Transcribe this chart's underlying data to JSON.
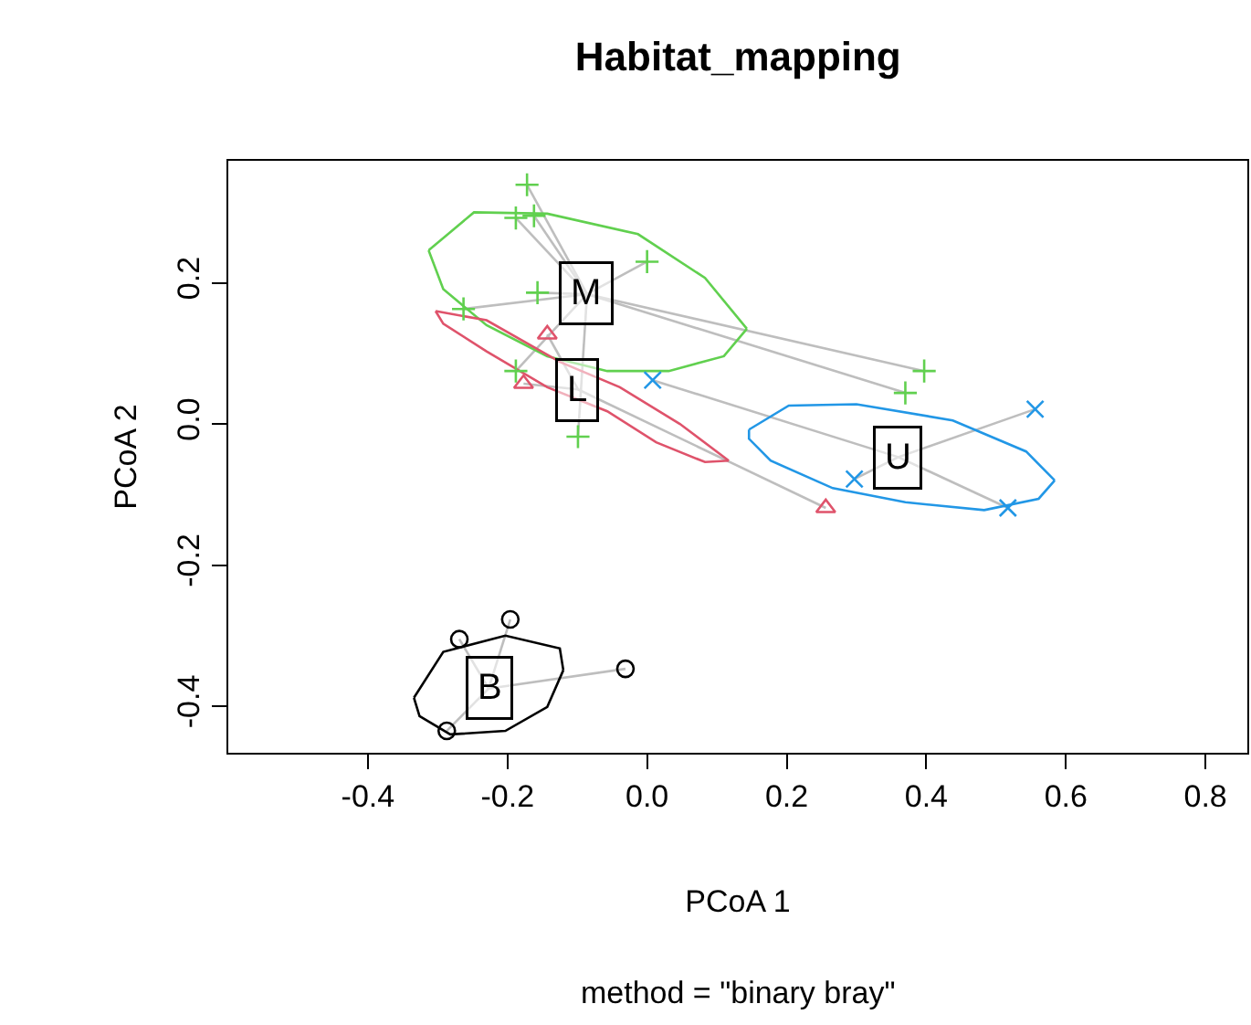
{
  "chart_data": {
    "type": "scatter",
    "title": "Habitat_mapping",
    "subtitle": "method = \"binary bray\"",
    "xlabel": "PCoA 1",
    "ylabel": "PCoA 2",
    "xlim": [
      -0.6,
      0.86
    ],
    "ylim": [
      -0.466,
      0.373
    ],
    "xticks": [
      -0.4,
      -0.2,
      {
        "value": 0,
        "label": "0.0"
      },
      0.2,
      0.4,
      0.6,
      0.8
    ],
    "yticks": [
      -0.4,
      -0.2,
      {
        "value": 0,
        "label": "0.0"
      },
      0.2
    ],
    "series": [
      {
        "type": "line",
        "color": "#bebebe",
        "x": [
          -0.172,
          -0.086
        ],
        "values": [
          0.339,
          0.184
        ]
      },
      {
        "type": "line",
        "color": "#bebebe",
        "x": [
          -0.188,
          -0.086
        ],
        "values": [
          0.292,
          0.184
        ]
      },
      {
        "type": "line",
        "color": "#bebebe",
        "x": [
          -0.162,
          -0.086
        ],
        "values": [
          0.295,
          0.184
        ]
      },
      {
        "type": "line",
        "color": "#bebebe",
        "x": [
          -0.086,
          0.0
        ],
        "values": [
          0.184,
          0.23
        ]
      },
      {
        "type": "line",
        "color": "#bebebe",
        "x": [
          -0.157,
          -0.086
        ],
        "values": [
          0.186,
          0.184
        ]
      },
      {
        "type": "line",
        "color": "#bebebe",
        "x": [
          -0.263,
          -0.086
        ],
        "values": [
          0.163,
          0.184
        ]
      },
      {
        "type": "line",
        "color": "#bebebe",
        "x": [
          -0.188,
          -0.086
        ],
        "values": [
          0.075,
          0.184
        ]
      },
      {
        "type": "line",
        "color": "#bebebe",
        "x": [
          -0.099,
          -0.086
        ],
        "values": [
          -0.018,
          0.184
        ]
      },
      {
        "type": "line",
        "color": "#bebebe",
        "x": [
          -0.086,
          0.397
        ],
        "values": [
          0.184,
          0.075
        ]
      },
      {
        "type": "line",
        "color": "#bebebe",
        "x": [
          -0.086,
          0.37
        ],
        "values": [
          0.184,
          0.044
        ]
      },
      {
        "type": "line",
        "color": "#bebebe",
        "x": [
          -0.143,
          -0.099
        ],
        "values": [
          0.127,
          0.049
        ]
      },
      {
        "type": "line",
        "color": "#bebebe",
        "x": [
          -0.177,
          -0.099
        ],
        "values": [
          0.057,
          0.049
        ]
      },
      {
        "type": "line",
        "color": "#bebebe",
        "x": [
          -0.099,
          0.256
        ],
        "values": [
          0.049,
          -0.119
        ]
      },
      {
        "type": "line",
        "color": "#bebebe",
        "x": [
          0.008,
          0.36
        ],
        "values": [
          0.062,
          -0.047
        ]
      },
      {
        "type": "line",
        "color": "#bebebe",
        "x": [
          0.297,
          0.36
        ],
        "values": [
          -0.078,
          -0.047
        ]
      },
      {
        "type": "line",
        "color": "#bebebe",
        "x": [
          0.36,
          0.517
        ],
        "values": [
          -0.047,
          -0.119
        ]
      },
      {
        "type": "line",
        "color": "#bebebe",
        "x": [
          0.36,
          0.556
        ],
        "values": [
          -0.047,
          0.021
        ]
      },
      {
        "type": "line",
        "color": "#bebebe",
        "x": [
          -0.269,
          -0.227
        ],
        "values": [
          -0.305,
          -0.375
        ]
      },
      {
        "type": "line",
        "color": "#bebebe",
        "x": [
          -0.227,
          -0.196
        ],
        "values": [
          -0.375,
          -0.277
        ]
      },
      {
        "type": "line",
        "color": "#bebebe",
        "x": [
          -0.227,
          -0.031
        ],
        "values": [
          -0.375,
          -0.347
        ]
      },
      {
        "type": "line",
        "color": "#bebebe",
        "x": [
          -0.287,
          -0.227
        ],
        "values": [
          -0.435,
          -0.375
        ]
      },
      {
        "type": "line",
        "color": "#61d04f",
        "x": [
          -0.313,
          -0.248,
          -0.143,
          -0.013,
          0.083,
          0.143
        ],
        "values": [
          0.246,
          0.3,
          0.298,
          0.269,
          0.207,
          0.135
        ]
      },
      {
        "type": "line",
        "color": "#61d04f",
        "x": [
          -0.313,
          -0.292,
          -0.23,
          -0.143,
          -0.057,
          0.031,
          0.11,
          0.143
        ],
        "values": [
          0.246,
          0.191,
          0.14,
          0.096,
          0.075,
          0.075,
          0.096,
          0.135
        ]
      },
      {
        "type": "line",
        "color": "#df536b",
        "x": [
          -0.303,
          -0.23,
          -0.125,
          -0.039,
          0.047,
          0.117
        ],
        "values": [
          0.16,
          0.147,
          0.088,
          0.052,
          0.0,
          -0.052
        ]
      },
      {
        "type": "line",
        "color": "#df536b",
        "x": [
          -0.303,
          -0.292,
          -0.23,
          -0.143,
          -0.057,
          0.013,
          0.083,
          0.117
        ],
        "values": [
          0.16,
          0.142,
          0.103,
          0.052,
          0.018,
          -0.026,
          -0.054,
          -0.052
        ]
      },
      {
        "type": "line",
        "color": "#2297e6",
        "x": [
          0.146,
          0.203,
          0.3,
          0.438,
          0.543,
          0.584
        ],
        "values": [
          -0.008,
          0.026,
          0.028,
          0.005,
          -0.039,
          -0.08
        ]
      },
      {
        "type": "line",
        "color": "#2297e6",
        "x": [
          0.146,
          0.146,
          0.177,
          0.266,
          0.37,
          0.483,
          0.561,
          0.584
        ],
        "values": [
          -0.008,
          -0.021,
          -0.052,
          -0.091,
          -0.111,
          -0.122,
          -0.106,
          -0.08
        ]
      },
      {
        "type": "line",
        "color": "#000000",
        "x": [
          -0.334,
          -0.292,
          -0.203,
          -0.125,
          -0.12
        ],
        "values": [
          -0.388,
          -0.323,
          -0.3,
          -0.318,
          -0.349
        ]
      },
      {
        "type": "line",
        "color": "#000000",
        "x": [
          -0.334,
          -0.326,
          -0.282,
          -0.203,
          -0.143,
          -0.12
        ],
        "values": [
          -0.388,
          -0.414,
          -0.44,
          -0.435,
          -0.401,
          -0.349
        ]
      },
      {
        "color": "#61d04f",
        "marker": "cross",
        "x": [
          -0.172,
          -0.188,
          -0.162,
          0.0,
          -0.157,
          -0.263,
          -0.188,
          -0.099,
          0.397,
          0.37
        ],
        "values": [
          0.339,
          0.292,
          0.295,
          0.23,
          0.186,
          0.163,
          0.075,
          -0.018,
          0.075,
          0.044
        ]
      },
      {
        "color": "#df536b",
        "marker": "triangle",
        "x": [
          -0.143,
          -0.177,
          0.256
        ],
        "values": [
          0.127,
          0.057,
          -0.119
        ]
      },
      {
        "color": "#2297e6",
        "marker": "x",
        "x": [
          0.008,
          0.297,
          0.517,
          0.556
        ],
        "values": [
          0.062,
          -0.078,
          -0.119,
          0.021
        ]
      },
      {
        "color": "#000000",
        "marker": "circle",
        "x": [
          -0.269,
          -0.196,
          -0.031,
          -0.287
        ],
        "values": [
          -0.305,
          -0.277,
          -0.347,
          -0.435
        ]
      }
    ],
    "annotations": [
      {
        "text": "M",
        "x": -0.086,
        "y": 0.184
      },
      {
        "text": "L",
        "x": -0.099,
        "y": 0.049
      },
      {
        "text": "U",
        "x": 0.36,
        "y": -0.047
      },
      {
        "text": "B",
        "x": -0.227,
        "y": -0.375
      }
    ]
  }
}
